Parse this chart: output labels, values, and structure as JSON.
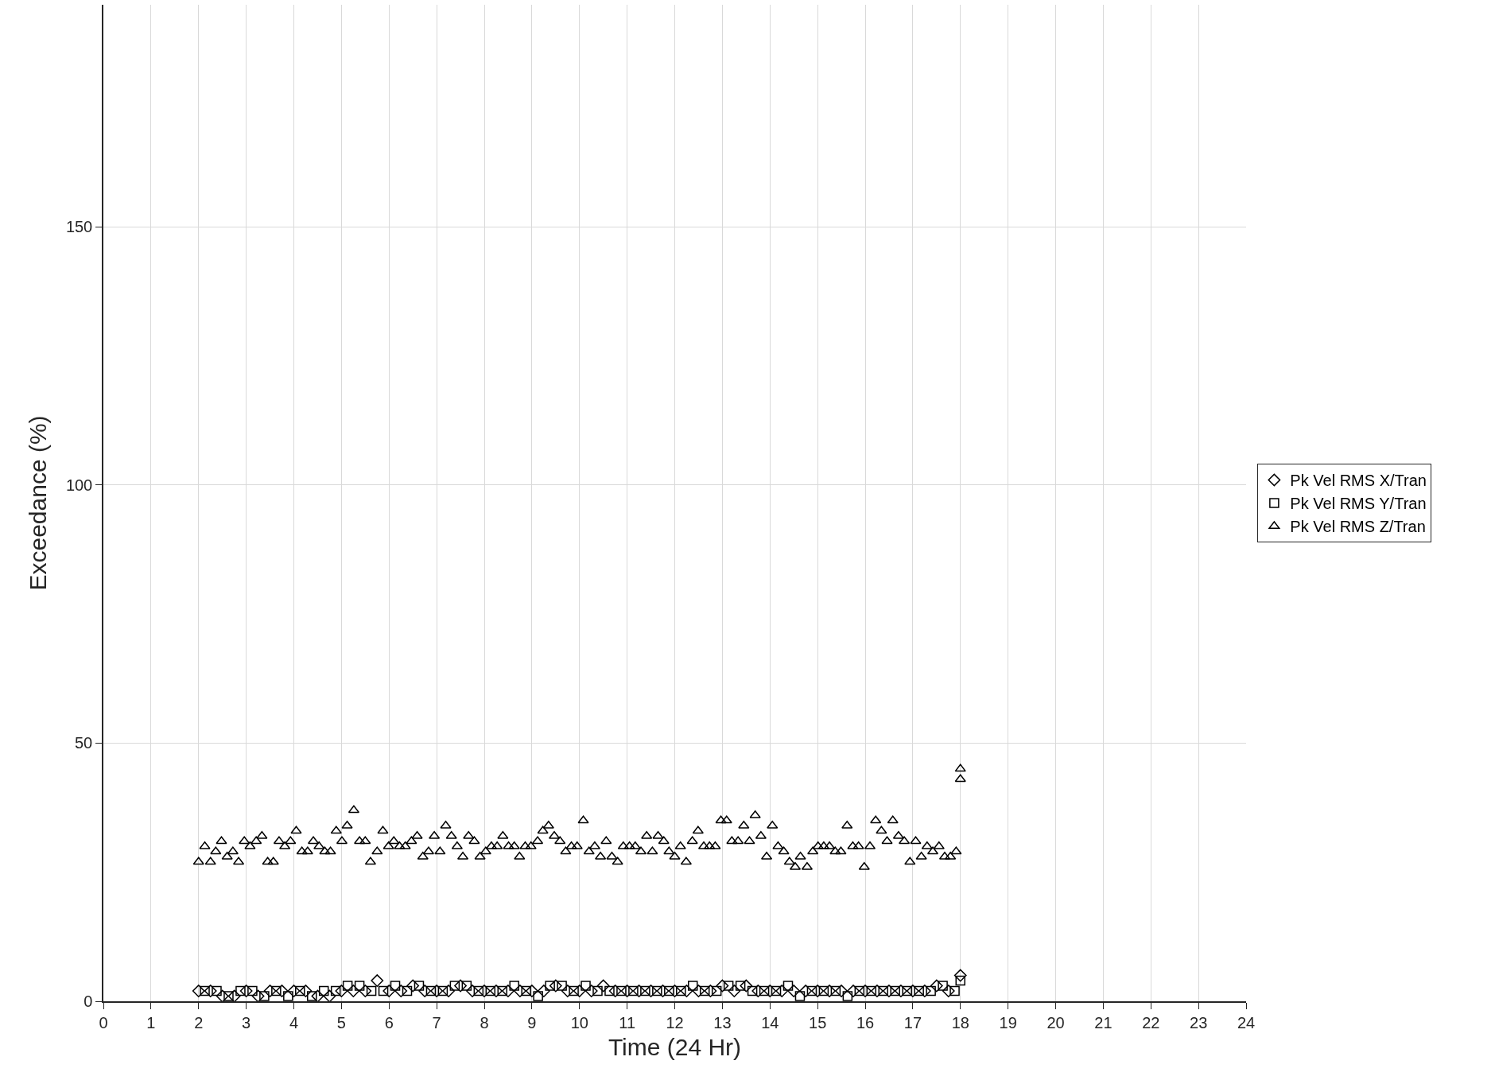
{
  "chart_data": {
    "type": "scatter",
    "xlabel": "Time (24 Hr)",
    "ylabel": "Exceedance (%)",
    "xlim": [
      0,
      24
    ],
    "xticks": [
      0,
      1,
      2,
      3,
      4,
      5,
      6,
      7,
      8,
      9,
      10,
      11,
      12,
      13,
      14,
      15,
      16,
      17,
      18,
      19,
      20,
      21,
      22,
      23,
      24
    ],
    "ylim": [
      0,
      193
    ],
    "yticks": [
      0,
      50,
      100,
      150
    ],
    "grid": true,
    "legend": "right",
    "series": [
      {
        "name": "Pk Vel RMS X/Tran",
        "color": "#000000",
        "marker": "diamond",
        "x": [
          2,
          2.25,
          2.5,
          2.75,
          3,
          3.25,
          3.5,
          3.75,
          4,
          4.25,
          4.5,
          4.75,
          5,
          5.25,
          5.5,
          5.75,
          6,
          6.25,
          6.5,
          6.75,
          7,
          7.25,
          7.5,
          7.75,
          8,
          8.25,
          8.5,
          8.75,
          9,
          9.25,
          9.5,
          9.75,
          10,
          10.25,
          10.5,
          10.75,
          11,
          11.25,
          11.5,
          11.75,
          12,
          12.25,
          12.5,
          12.75,
          13,
          13.25,
          13.5,
          13.75,
          14,
          14.25,
          14.5,
          14.75,
          15,
          15.25,
          15.5,
          15.75,
          16,
          16.25,
          16.5,
          16.75,
          17,
          17.25,
          17.5,
          17.75,
          18
        ],
        "values": [
          2,
          2,
          1,
          1,
          2,
          1,
          2,
          2,
          2,
          2,
          1,
          1,
          2,
          2,
          2,
          4,
          2,
          2,
          3,
          2,
          2,
          2,
          3,
          2,
          2,
          2,
          2,
          2,
          2,
          2,
          3,
          2,
          2,
          2,
          3,
          2,
          2,
          2,
          2,
          2,
          2,
          2,
          2,
          2,
          3,
          2,
          3,
          2,
          2,
          2,
          2,
          2,
          2,
          2,
          2,
          2,
          2,
          2,
          2,
          2,
          2,
          2,
          3,
          2,
          5
        ]
      },
      {
        "name": "Pk Vel RMS Y/Tran",
        "color": "#000000",
        "marker": "square",
        "x": [
          2.13,
          2.38,
          2.63,
          2.88,
          3.13,
          3.38,
          3.63,
          3.88,
          4.13,
          4.38,
          4.63,
          4.88,
          5.13,
          5.38,
          5.63,
          5.88,
          6.13,
          6.38,
          6.63,
          6.88,
          7.13,
          7.38,
          7.63,
          7.88,
          8.13,
          8.38,
          8.63,
          8.88,
          9.13,
          9.38,
          9.63,
          9.88,
          10.13,
          10.38,
          10.63,
          10.88,
          11.13,
          11.38,
          11.63,
          11.88,
          12.13,
          12.38,
          12.63,
          12.88,
          13.13,
          13.38,
          13.63,
          13.88,
          14.13,
          14.38,
          14.63,
          14.88,
          15.13,
          15.38,
          15.63,
          15.88,
          16.13,
          16.38,
          16.63,
          16.88,
          17.13,
          17.38,
          17.63,
          17.88,
          18
        ],
        "values": [
          2,
          2,
          1,
          2,
          2,
          1,
          2,
          1,
          2,
          1,
          2,
          2,
          3,
          3,
          2,
          2,
          3,
          2,
          3,
          2,
          2,
          3,
          3,
          2,
          2,
          2,
          3,
          2,
          1,
          3,
          3,
          2,
          3,
          2,
          2,
          2,
          2,
          2,
          2,
          2,
          2,
          3,
          2,
          2,
          3,
          3,
          2,
          2,
          2,
          3,
          1,
          2,
          2,
          2,
          1,
          2,
          2,
          2,
          2,
          2,
          2,
          2,
          3,
          2,
          4
        ]
      },
      {
        "name": "Pk Vel RMS Z/Tran",
        "color": "#000000",
        "marker": "triangle",
        "x": [
          2.0,
          2.13,
          2.25,
          2.36,
          2.48,
          2.6,
          2.72,
          2.84,
          2.96,
          3.08,
          3.21,
          3.33,
          3.45,
          3.57,
          3.69,
          3.81,
          3.93,
          4.05,
          4.17,
          4.29,
          4.41,
          4.53,
          4.65,
          4.77,
          4.89,
          5.01,
          5.12,
          5.26,
          5.38,
          5.5,
          5.61,
          5.75,
          5.87,
          5.99,
          6.1,
          6.22,
          6.34,
          6.47,
          6.59,
          6.71,
          6.83,
          6.95,
          7.07,
          7.19,
          7.31,
          7.43,
          7.55,
          7.67,
          7.79,
          7.91,
          8.03,
          8.15,
          8.27,
          8.39,
          8.51,
          8.63,
          8.74,
          8.86,
          8.98,
          9.12,
          9.23,
          9.35,
          9.47,
          9.59,
          9.71,
          9.83,
          9.95,
          10.08,
          10.2,
          10.32,
          10.44,
          10.56,
          10.68,
          10.8,
          10.92,
          11.05,
          11.17,
          11.29,
          11.41,
          11.53,
          11.65,
          11.77,
          11.88,
          12.0,
          12.12,
          12.24,
          12.37,
          12.49,
          12.61,
          12.73,
          12.85,
          12.97,
          13.09,
          13.2,
          13.33,
          13.45,
          13.57,
          13.69,
          13.81,
          13.93,
          14.05,
          14.17,
          14.29,
          14.41,
          14.53,
          14.64,
          14.78,
          14.9,
          15.01,
          15.13,
          15.25,
          15.37,
          15.49,
          15.62,
          15.74,
          15.86,
          15.98,
          16.1,
          16.22,
          16.34,
          16.46,
          16.58,
          16.7,
          16.82,
          16.94,
          17.06,
          17.18,
          17.3,
          17.42,
          17.55,
          17.67,
          17.79,
          17.91,
          18,
          18
        ],
        "values": [
          27,
          30,
          27,
          29,
          31,
          28,
          29,
          27,
          31,
          30,
          31,
          32,
          27,
          27,
          31,
          30,
          31,
          33,
          29,
          29,
          31,
          30,
          29,
          29,
          33,
          31,
          34,
          37,
          31,
          31,
          27,
          29,
          33,
          30,
          31,
          30,
          30,
          31,
          32,
          28,
          29,
          32,
          29,
          34,
          32,
          30,
          28,
          32,
          31,
          28,
          29,
          30,
          30,
          32,
          30,
          30,
          28,
          30,
          30,
          31,
          33,
          34,
          32,
          31,
          29,
          30,
          30,
          35,
          29,
          30,
          28,
          31,
          28,
          27,
          30,
          30,
          30,
          29,
          32,
          29,
          32,
          31,
          29,
          28,
          30,
          27,
          31,
          33,
          30,
          30,
          30,
          35,
          35,
          31,
          31,
          34,
          31,
          36,
          32,
          28,
          34,
          30,
          29,
          27,
          26,
          28,
          26,
          29,
          30,
          30,
          30,
          29,
          29,
          34,
          30,
          30,
          26,
          30,
          35,
          33,
          31,
          35,
          32,
          31,
          27,
          31,
          28,
          30,
          29,
          30,
          28,
          28,
          29,
          45,
          43
        ]
      }
    ]
  }
}
